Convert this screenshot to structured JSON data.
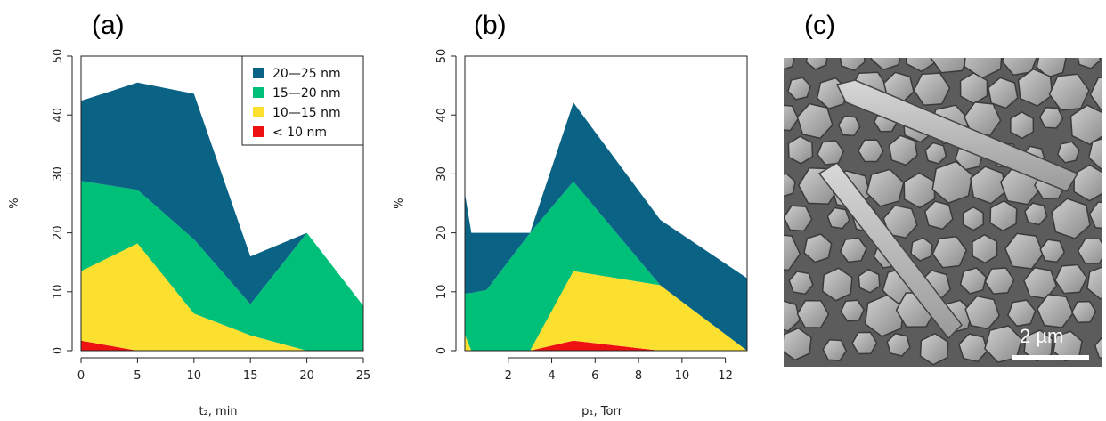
{
  "panels": {
    "a": "(a)",
    "b": "(b)",
    "c": "(c)"
  },
  "colors": {
    "c20_25": "#0a6285",
    "c15_20": "#00bf78",
    "c10_15": "#fce030",
    "c_lt10": "#ee1111"
  },
  "chart_data": [
    {
      "type": "area",
      "stacked": true,
      "xlabel": "t₂, min",
      "ylabel": "%",
      "xlim": [
        0,
        25
      ],
      "ylim": [
        0,
        50
      ],
      "xticks": [
        0,
        5,
        10,
        15,
        20,
        25
      ],
      "yticks": [
        0,
        10,
        20,
        30,
        40,
        50
      ],
      "legend_placement": "top-right",
      "x": [
        0,
        5,
        10,
        15,
        20,
        25
      ],
      "series": [
        {
          "name": "< 10 nm",
          "values": [
            1.7,
            0,
            0,
            0,
            0,
            0
          ]
        },
        {
          "name": "10—15 nm",
          "values": [
            11.8,
            18.2,
            6.3,
            2.6,
            0,
            0
          ]
        },
        {
          "name": "15—20 nm",
          "values": [
            15.3,
            9.1,
            12.6,
            5.3,
            20,
            7.6
          ]
        },
        {
          "name": "20—25 nm",
          "values": [
            13.6,
            18.2,
            24.7,
            8.1,
            0,
            0
          ]
        }
      ]
    },
    {
      "type": "area",
      "stacked": true,
      "xlabel": "p₁, Torr",
      "ylabel": "%",
      "xlim": [
        0,
        13
      ],
      "ylim": [
        0,
        50
      ],
      "xticks": [
        2,
        4,
        6,
        8,
        10,
        12
      ],
      "yticks": [
        0,
        10,
        20,
        30,
        40,
        50
      ],
      "x": [
        0,
        0.3,
        1,
        3,
        5,
        9,
        13
      ],
      "series": [
        {
          "name": "< 10 nm",
          "values": [
            0,
            0,
            0,
            0,
            1.7,
            0,
            0
          ]
        },
        {
          "name": "10—15 nm",
          "values": [
            2.7,
            0,
            0,
            0,
            11.8,
            11.1,
            0
          ]
        },
        {
          "name": "15—20 nm",
          "values": [
            7.0,
            9.8,
            10.3,
            20,
            15.2,
            0,
            0
          ]
        },
        {
          "name": "20—25 nm",
          "values": [
            17.0,
            10.2,
            9.7,
            0,
            13.4,
            11.1,
            12.3
          ]
        }
      ]
    }
  ],
  "image_c": {
    "scale_label": "2 µm"
  }
}
